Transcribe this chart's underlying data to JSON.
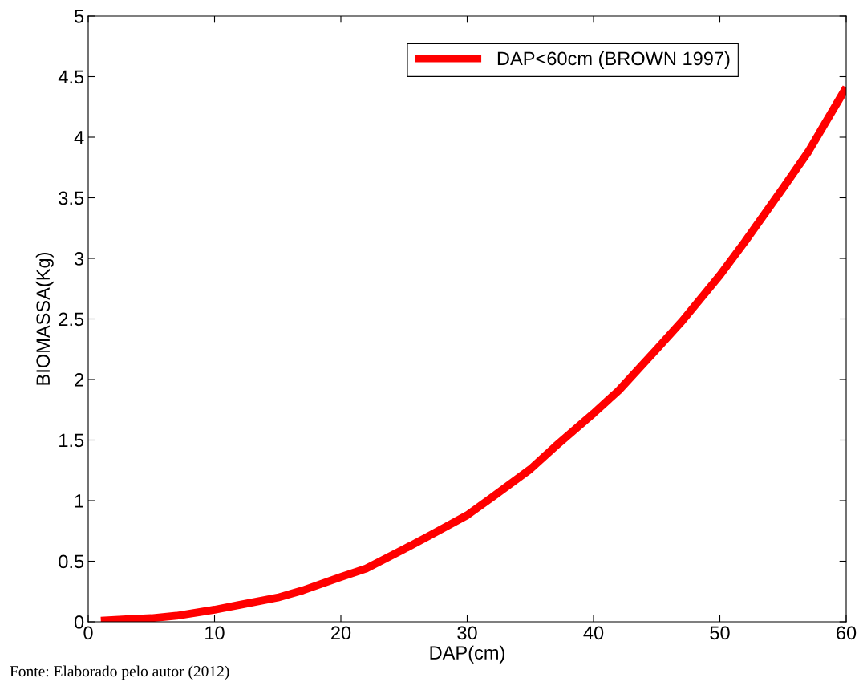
{
  "chart_data": {
    "type": "line",
    "xlabel": "DAP(cm)",
    "ylabel": "BIOMASSA(Kg)",
    "x": [
      1,
      3,
      5,
      7,
      10,
      12,
      15,
      17,
      20,
      22,
      25,
      27,
      30,
      32,
      35,
      37,
      40,
      42,
      45,
      47,
      50,
      52,
      55,
      57,
      60
    ],
    "series": [
      {
        "name": "DAP<60cm (BROWN 1997)",
        "color": "#ff0000",
        "values": [
          0.01,
          0.02,
          0.03,
          0.05,
          0.1,
          0.14,
          0.2,
          0.26,
          0.37,
          0.44,
          0.6,
          0.71,
          0.88,
          1.03,
          1.26,
          1.45,
          1.72,
          1.91,
          2.25,
          2.48,
          2.86,
          3.14,
          3.58,
          3.88,
          4.41
        ]
      }
    ],
    "xlim": [
      0,
      60
    ],
    "xticks": [
      0,
      10,
      20,
      30,
      40,
      50,
      60
    ],
    "ylim": [
      0,
      5
    ],
    "yticks": [
      0,
      0.5,
      1,
      1.5,
      2,
      2.5,
      3,
      3.5,
      4,
      4.5,
      5
    ],
    "grid": false,
    "legend": "top right",
    "marker": "none",
    "line_style": "solid",
    "annotations": [
      "Fonte: Elaborado pelo autor (2012)"
    ]
  }
}
